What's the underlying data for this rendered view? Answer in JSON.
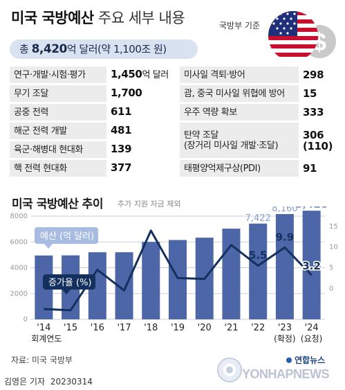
{
  "header": {
    "title_bold": "미국 국방예산",
    "title_thin": "주요 세부 내용",
    "source_label": "국방부 기준",
    "total_prefix": "총 ",
    "total_value": "8,420",
    "total_suffix": "억 달러(약 1,100조 원)"
  },
  "items_left": [
    {
      "label": "연구·개발·시험·평가",
      "value": "1,450",
      "unit": "억 달러"
    },
    {
      "label": "무기 조달",
      "value": "1,700",
      "unit": ""
    },
    {
      "label": "공중 전력",
      "value": "611",
      "unit": ""
    },
    {
      "label": "해군 전력 개발",
      "value": "481",
      "unit": ""
    },
    {
      "label": "육군·해병대 현대화",
      "value": "139",
      "unit": ""
    },
    {
      "label": "핵 전력 현대화",
      "value": "377",
      "unit": ""
    }
  ],
  "items_right": [
    {
      "label": "미사일 격퇴·방어",
      "value": "298",
      "sub_label": "",
      "sub_value": ""
    },
    {
      "label": "괌, 중국 미사일 위협에 방어",
      "value": "15",
      "sub_label": "",
      "sub_value": ""
    },
    {
      "label": "우주 역량 확보",
      "value": "333",
      "sub_label": "",
      "sub_value": ""
    },
    {
      "label": "탄약 조달",
      "value": "306",
      "sub_label": "(장거리 미사일 개발·조달)",
      "sub_value": "(110)"
    },
    {
      "label": "태평양억제구상(PDI)",
      "value": "91",
      "sub_label": "",
      "sub_value": ""
    }
  ],
  "chart_data": {
    "type": "bar",
    "title": "미국 국방예산 추이",
    "note": "추가 지원 자금 제외",
    "categories": [
      "'14",
      "'15",
      "'16",
      "'17",
      "'18",
      "'19",
      "'20",
      "'21",
      "'22",
      "'23",
      "'24"
    ],
    "category_sublabels": [
      "회계연도",
      "",
      "",
      "",
      "",
      "",
      "",
      "",
      "",
      "(확정)",
      "(요청)"
    ],
    "series": [
      {
        "name": "예산 (억 달러)",
        "axis": "left",
        "type": "bar",
        "values": [
          4950,
          4960,
          5200,
          5200,
          6000,
          6150,
          6330,
          7030,
          7422,
          8160,
          8420
        ]
      },
      {
        "name": "증가율 (%)",
        "axis": "right",
        "type": "line",
        "values": [
          -5.0,
          -5.3,
          4.5,
          -0.5,
          14.0,
          2.5,
          2.3,
          10.5,
          5.5,
          9.9,
          3.2
        ]
      }
    ],
    "labeled_bar_values": {
      "8": "7,422",
      "9": "8,160",
      "10": "8,420"
    },
    "labeled_line_values": {
      "8": "5.5",
      "9": "9.9",
      "10": "3.2"
    },
    "yleft_ticks": [
      0,
      2000,
      4000,
      6000,
      8000
    ],
    "yleft_lim": [
      0,
      8000
    ],
    "yright_ticks": [
      0,
      5,
      10,
      15
    ],
    "yright_lim": [
      -7.5,
      17.5
    ],
    "colors": {
      "bar": "#4d66a7",
      "bar_labeled": "#8aa0d0",
      "line": "#14305f",
      "grid": "#c9d0dc",
      "accent_label": "#a8bbe0"
    }
  },
  "footer": {
    "source": "자료: 미국 국방부",
    "author": "김영은 기자",
    "date": "20230314",
    "logo_korean": "연합뉴스",
    "logo_english": "YONHAPNEWS"
  }
}
